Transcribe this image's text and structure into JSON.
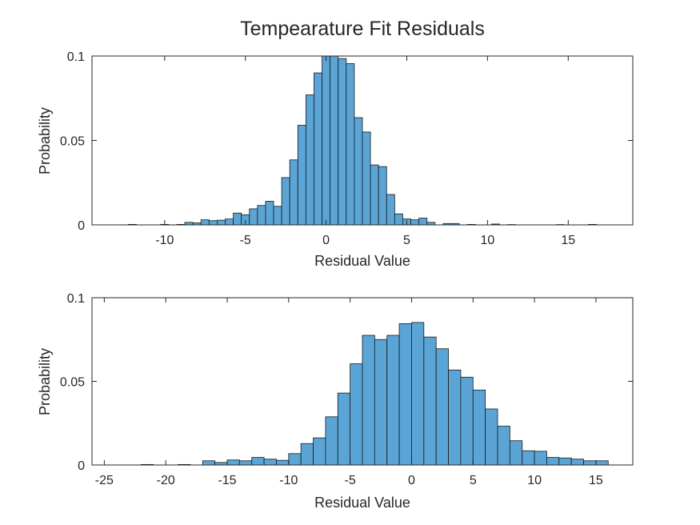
{
  "figure": {
    "title": "Tempearature Fit Residuals"
  },
  "colors": {
    "bar_fill": "#5aa5d6",
    "bar_edge": "#1a1a1a",
    "axes": "#262626"
  },
  "chart_data": [
    {
      "type": "bar",
      "histogram": true,
      "xlabel": "Residual Value",
      "ylabel": "Probability",
      "xlim": [
        -14.5,
        19
      ],
      "ylim": [
        0,
        0.1
      ],
      "xticks": [
        -10,
        -5,
        0,
        5,
        10,
        15
      ],
      "yticks": [
        0,
        0.05,
        0.1
      ],
      "ytick_labels": [
        "0",
        "0.05",
        "0.1"
      ],
      "grid": false,
      "bin_width": 0.5,
      "bins": [
        {
          "x0": -12.25,
          "x1": -11.75,
          "v": 0.0003
        },
        {
          "x0": -10.25,
          "x1": -9.75,
          "v": 0.0003
        },
        {
          "x0": -9.25,
          "x1": -8.75,
          "v": 0.0003
        },
        {
          "x0": -8.75,
          "x1": -8.25,
          "v": 0.0015
        },
        {
          "x0": -8.25,
          "x1": -7.75,
          "v": 0.0012
        },
        {
          "x0": -7.75,
          "x1": -7.25,
          "v": 0.003
        },
        {
          "x0": -7.25,
          "x1": -6.75,
          "v": 0.0025
        },
        {
          "x0": -6.75,
          "x1": -6.25,
          "v": 0.0028
        },
        {
          "x0": -6.25,
          "x1": -5.75,
          "v": 0.0035
        },
        {
          "x0": -5.75,
          "x1": -5.25,
          "v": 0.007
        },
        {
          "x0": -5.25,
          "x1": -4.75,
          "v": 0.006
        },
        {
          "x0": -4.75,
          "x1": -4.25,
          "v": 0.0095
        },
        {
          "x0": -4.25,
          "x1": -3.75,
          "v": 0.0115
        },
        {
          "x0": -3.75,
          "x1": -3.25,
          "v": 0.014
        },
        {
          "x0": -3.25,
          "x1": -2.75,
          "v": 0.011
        },
        {
          "x0": -2.75,
          "x1": -2.25,
          "v": 0.028
        },
        {
          "x0": -2.25,
          "x1": -1.75,
          "v": 0.0385
        },
        {
          "x0": -1.75,
          "x1": -1.25,
          "v": 0.059
        },
        {
          "x0": -1.25,
          "x1": -0.75,
          "v": 0.077
        },
        {
          "x0": -0.75,
          "x1": -0.25,
          "v": 0.09
        },
        {
          "x0": -0.25,
          "x1": 0.25,
          "v": 0.1
        },
        {
          "x0": 0.25,
          "x1": 0.75,
          "v": 0.1
        },
        {
          "x0": 0.75,
          "x1": 1.25,
          "v": 0.0985
        },
        {
          "x0": 1.25,
          "x1": 1.75,
          "v": 0.0955
        },
        {
          "x0": 1.75,
          "x1": 2.25,
          "v": 0.0635
        },
        {
          "x0": 2.25,
          "x1": 2.75,
          "v": 0.055
        },
        {
          "x0": 2.75,
          "x1": 3.25,
          "v": 0.0355
        },
        {
          "x0": 3.25,
          "x1": 3.75,
          "v": 0.0345
        },
        {
          "x0": 3.75,
          "x1": 4.25,
          "v": 0.018
        },
        {
          "x0": 4.25,
          "x1": 4.75,
          "v": 0.0065
        },
        {
          "x0": 4.75,
          "x1": 5.25,
          "v": 0.0035
        },
        {
          "x0": 5.25,
          "x1": 5.75,
          "v": 0.003
        },
        {
          "x0": 5.75,
          "x1": 6.25,
          "v": 0.004
        },
        {
          "x0": 6.25,
          "x1": 6.75,
          "v": 0.0015
        },
        {
          "x0": 7.25,
          "x1": 7.75,
          "v": 0.0008
        },
        {
          "x0": 7.75,
          "x1": 8.25,
          "v": 0.0008
        },
        {
          "x0": 8.75,
          "x1": 9.25,
          "v": 0.0003
        },
        {
          "x0": 10.25,
          "x1": 10.75,
          "v": 0.0005
        },
        {
          "x0": 11.25,
          "x1": 11.75,
          "v": 0.0002
        },
        {
          "x0": 14.25,
          "x1": 14.75,
          "v": 0.0002
        },
        {
          "x0": 16.25,
          "x1": 16.75,
          "v": 0.0003
        }
      ]
    },
    {
      "type": "bar",
      "histogram": true,
      "xlabel": "Residual Value",
      "ylabel": "Probability",
      "xlim": [
        -26,
        18
      ],
      "ylim": [
        0,
        0.1
      ],
      "xticks": [
        -25,
        -20,
        -15,
        -10,
        -5,
        0,
        5,
        10,
        15
      ],
      "yticks": [
        0,
        0.05,
        0.1
      ],
      "ytick_labels": [
        "0",
        "0.05",
        "0.1"
      ],
      "grid": false,
      "bin_width": 1,
      "bins": [
        {
          "x0": -22,
          "x1": -21,
          "v": 0.0003
        },
        {
          "x0": -19,
          "x1": -18,
          "v": 0.0003
        },
        {
          "x0": -17,
          "x1": -16,
          "v": 0.0025
        },
        {
          "x0": -16,
          "x1": -15,
          "v": 0.0015
        },
        {
          "x0": -15,
          "x1": -14,
          "v": 0.003
        },
        {
          "x0": -14,
          "x1": -13,
          "v": 0.0025
        },
        {
          "x0": -13,
          "x1": -12,
          "v": 0.0045
        },
        {
          "x0": -12,
          "x1": -11,
          "v": 0.0035
        },
        {
          "x0": -11,
          "x1": -10,
          "v": 0.0028
        },
        {
          "x0": -10,
          "x1": -9,
          "v": 0.0068
        },
        {
          "x0": -9,
          "x1": -8,
          "v": 0.0128
        },
        {
          "x0": -8,
          "x1": -7,
          "v": 0.0162
        },
        {
          "x0": -7,
          "x1": -6,
          "v": 0.0288
        },
        {
          "x0": -6,
          "x1": -5,
          "v": 0.043
        },
        {
          "x0": -5,
          "x1": -4,
          "v": 0.0605
        },
        {
          "x0": -4,
          "x1": -3,
          "v": 0.0775
        },
        {
          "x0": -3,
          "x1": -2,
          "v": 0.075
        },
        {
          "x0": -2,
          "x1": -1,
          "v": 0.0775
        },
        {
          "x0": -1,
          "x1": 0,
          "v": 0.0845
        },
        {
          "x0": 0,
          "x1": 1,
          "v": 0.0852
        },
        {
          "x0": 1,
          "x1": 2,
          "v": 0.0765
        },
        {
          "x0": 2,
          "x1": 3,
          "v": 0.0695
        },
        {
          "x0": 3,
          "x1": 4,
          "v": 0.0568
        },
        {
          "x0": 4,
          "x1": 5,
          "v": 0.0525
        },
        {
          "x0": 5,
          "x1": 6,
          "v": 0.0448
        },
        {
          "x0": 6,
          "x1": 7,
          "v": 0.0335
        },
        {
          "x0": 7,
          "x1": 8,
          "v": 0.0232
        },
        {
          "x0": 8,
          "x1": 9,
          "v": 0.0145
        },
        {
          "x0": 9,
          "x1": 10,
          "v": 0.0085
        },
        {
          "x0": 10,
          "x1": 11,
          "v": 0.0082
        },
        {
          "x0": 11,
          "x1": 12,
          "v": 0.0045
        },
        {
          "x0": 12,
          "x1": 13,
          "v": 0.0042
        },
        {
          "x0": 13,
          "x1": 14,
          "v": 0.0035
        },
        {
          "x0": 14,
          "x1": 15,
          "v": 0.0025
        },
        {
          "x0": 15,
          "x1": 16,
          "v": 0.0025
        }
      ]
    }
  ]
}
